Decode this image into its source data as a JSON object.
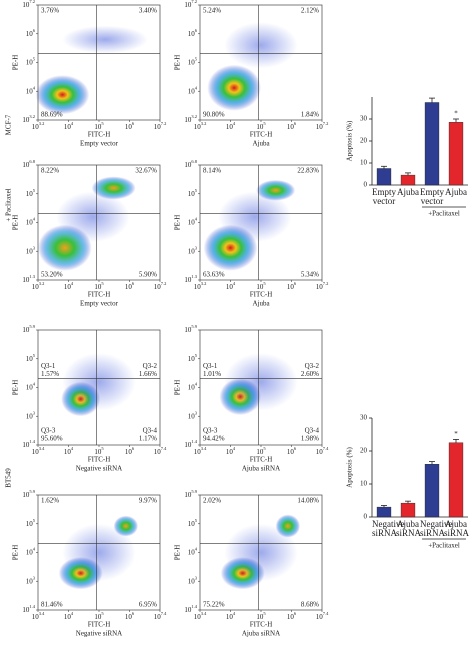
{
  "side_labels": [
    "MCF-7",
    "+ Paclitaxel",
    "BT549"
  ],
  "tick_base": "10",
  "flow_plots": [
    {
      "y_axis": "PE-H",
      "x_axis": "FITC-H",
      "sample": "Empty vector",
      "x_ticks": [
        "3.2",
        "4",
        "5",
        "6",
        "7.2"
      ],
      "y_ticks": [
        "3.2",
        "4",
        "5",
        "6",
        "7.2"
      ],
      "quadrants": {
        "ul": "3.76%",
        "ur": "3.40%",
        "ll": "88.69%"
      }
    },
    {
      "y_axis": "PE-H",
      "x_axis": "FITC-H",
      "sample": "Ajuba",
      "x_ticks": [
        "3.2",
        "4",
        "5",
        "6",
        "7.2"
      ],
      "y_ticks": [
        "3.2",
        "4",
        "5",
        "6",
        "7.2"
      ],
      "quadrants": {
        "ul": "5.24%",
        "ur": "2.12%",
        "ll": "90.80%",
        "lr": "1.84%"
      }
    },
    {
      "y_axis": "PE-H",
      "x_axis": "FITC-H",
      "sample": "Empty vector",
      "x_ticks": [
        "3.2",
        "4",
        "5",
        "6",
        "7.2"
      ],
      "y_ticks": [
        "1.3",
        "3",
        "4",
        "5",
        "6.8"
      ],
      "quadrants": {
        "ul": "8.22%",
        "ur": "32.67%",
        "ll": "53.20%",
        "lr": "5.90%"
      }
    },
    {
      "y_axis": "PE-H",
      "x_axis": "FITC-H",
      "sample": "Ajuba",
      "x_ticks": [
        "3.2",
        "4",
        "5",
        "6",
        "7.2"
      ],
      "y_ticks": [
        "1.3",
        "3",
        "4",
        "5",
        "6.8"
      ],
      "quadrants": {
        "ul": "8.14%",
        "ur": "22.83%",
        "ll": "63.63%",
        "lr": "5.34%"
      }
    },
    {
      "y_axis": "PE-H",
      "x_axis": "FITC-H",
      "sample": "Negative siRNA",
      "x_ticks": [
        "3.4",
        "4",
        "5",
        "6",
        "7.4"
      ],
      "y_ticks": [
        "1.4",
        "3",
        "4",
        "5",
        "5.9"
      ],
      "gates": {
        "ul": "Q3-1",
        "ur": "Q3-2",
        "ll": "Q3-3",
        "lr": "Q3-4"
      },
      "quadrants": {
        "ul": "1.57%",
        "ur": "1.66%",
        "ll": "95.60%",
        "lr": "1.17%"
      }
    },
    {
      "y_axis": "PE-H",
      "x_axis": "FITC-H",
      "sample": "Ajuba siRNA",
      "x_ticks": [
        "3.4",
        "4",
        "5",
        "6",
        "7.4"
      ],
      "y_ticks": [
        "1.4",
        "3",
        "4",
        "5",
        "5.9"
      ],
      "gates": {
        "ul": "Q3-1",
        "ur": "Q3-2",
        "ll": "Q3-3",
        "lr": "Q3-4"
      },
      "quadrants": {
        "ul": "1.01%",
        "ur": "2.60%",
        "ll": "94.42%",
        "lr": "1.98%"
      }
    },
    {
      "y_axis": "PE-H",
      "x_axis": "FITC-H",
      "sample": "Negative siRNA",
      "x_ticks": [
        "3.4",
        "4",
        "5",
        "6",
        "7.4"
      ],
      "y_ticks": [
        "1.4",
        "3",
        "4",
        "5",
        "5.9"
      ],
      "quadrants": {
        "ul": "1.62%",
        "ur": "9.97%",
        "ll": "81.46%",
        "lr": "6.95%"
      }
    },
    {
      "y_axis": "PE-H",
      "x_axis": "FITC-H",
      "sample": "Ajuba siRNA",
      "x_ticks": [
        "3.4",
        "4",
        "5",
        "6",
        "7.4"
      ],
      "y_ticks": [
        "1.4",
        "3",
        "4",
        "5",
        "5.9"
      ],
      "quadrants": {
        "ul": "2.02%",
        "ur": "14.08%",
        "ll": "75.22%",
        "lr": "8.68%"
      }
    }
  ],
  "chart_data": [
    {
      "type": "bar",
      "y_label": "Apoptosis (%)",
      "categories": [
        "Empty vector",
        "Ajuba",
        "Empty vector",
        "Ajuba"
      ],
      "values": [
        7.5,
        4.5,
        37.5,
        28.5
      ],
      "errors": [
        1,
        1,
        2,
        1.5
      ],
      "colors": [
        "#2e3c91",
        "#e3262b",
        "#2e3c91",
        "#e3262b"
      ],
      "ylim": [
        0,
        40
      ],
      "yticks": [
        0,
        10,
        20,
        30
      ],
      "group_label": "+Paclitaxel",
      "annotations": [
        {
          "index": 3,
          "text": "*"
        }
      ]
    },
    {
      "type": "bar",
      "y_label": "Apoptosis (%)",
      "categories": [
        "Negative siRNA",
        "Ajuba siRNA",
        "Negative siRNA",
        "Ajuba siRNA"
      ],
      "values": [
        3,
        4.2,
        16,
        22.5
      ],
      "errors": [
        0.5,
        0.6,
        0.8,
        1
      ],
      "colors": [
        "#2e3c91",
        "#e3262b",
        "#2e3c91",
        "#e3262b"
      ],
      "ylim": [
        0,
        30
      ],
      "yticks": [
        0,
        10,
        20,
        30
      ],
      "group_label": "+Paclitaxel",
      "annotations": [
        {
          "index": 3,
          "text": "*"
        }
      ]
    }
  ]
}
